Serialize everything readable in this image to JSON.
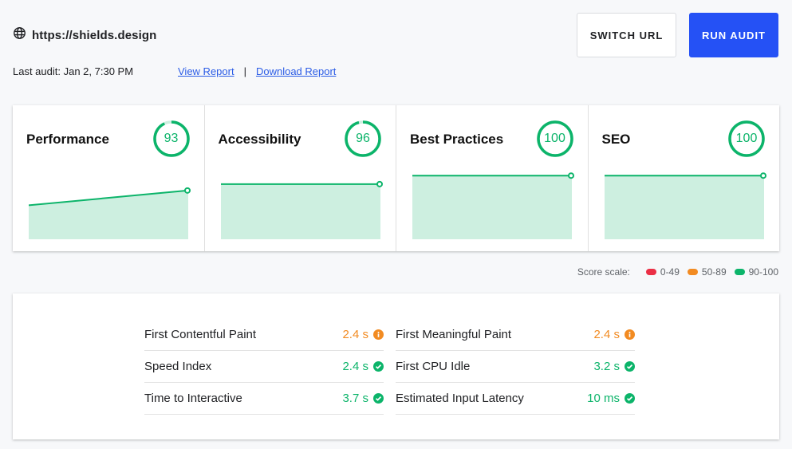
{
  "header": {
    "site_icon": "globe-icon",
    "site_url": "https://shields.design",
    "last_audit": "Last audit: Jan 2, 7:30 PM",
    "view_report": "View Report",
    "separator": "|",
    "download_report": "Download Report",
    "switch_url_label": "SWITCH URL",
    "run_audit_label": "RUN AUDIT"
  },
  "colors": {
    "accent": "#2551f5",
    "pass": "#0cb46a",
    "average": "#f28b22",
    "fail": "#eb2f45",
    "pass_fill": "#cdefe0"
  },
  "categories": [
    {
      "title": "Performance",
      "score": "93",
      "score_num": 93,
      "trend": [
        86,
        93
      ]
    },
    {
      "title": "Accessibility",
      "score": "96",
      "score_num": 96,
      "trend": [
        96,
        96
      ]
    },
    {
      "title": "Best Practices",
      "score": "100",
      "score_num": 100,
      "trend": [
        100,
        100
      ]
    },
    {
      "title": "SEO",
      "score": "100",
      "score_num": 100,
      "trend": [
        100,
        100
      ]
    }
  ],
  "score_scale": {
    "label": "Score scale:",
    "items": [
      {
        "range": "0-49",
        "color": "#eb2f45"
      },
      {
        "range": "50-89",
        "color": "#f28b22"
      },
      {
        "range": "90-100",
        "color": "#0cb46a"
      }
    ]
  },
  "metrics": {
    "left": [
      {
        "name": "First Contentful Paint",
        "value": "2.4 s",
        "status": "average",
        "icon": "info-icon"
      },
      {
        "name": "Speed Index",
        "value": "2.4 s",
        "status": "pass",
        "icon": "check-circle-icon"
      },
      {
        "name": "Time to Interactive",
        "value": "3.7 s",
        "status": "pass",
        "icon": "check-circle-icon"
      }
    ],
    "right": [
      {
        "name": "First Meaningful Paint",
        "value": "2.4 s",
        "status": "average",
        "icon": "info-icon"
      },
      {
        "name": "First CPU Idle",
        "value": "3.2 s",
        "status": "pass",
        "icon": "check-circle-icon"
      },
      {
        "name": "Estimated Input Latency",
        "value": "10 ms",
        "status": "pass",
        "icon": "check-circle-icon"
      }
    ]
  }
}
